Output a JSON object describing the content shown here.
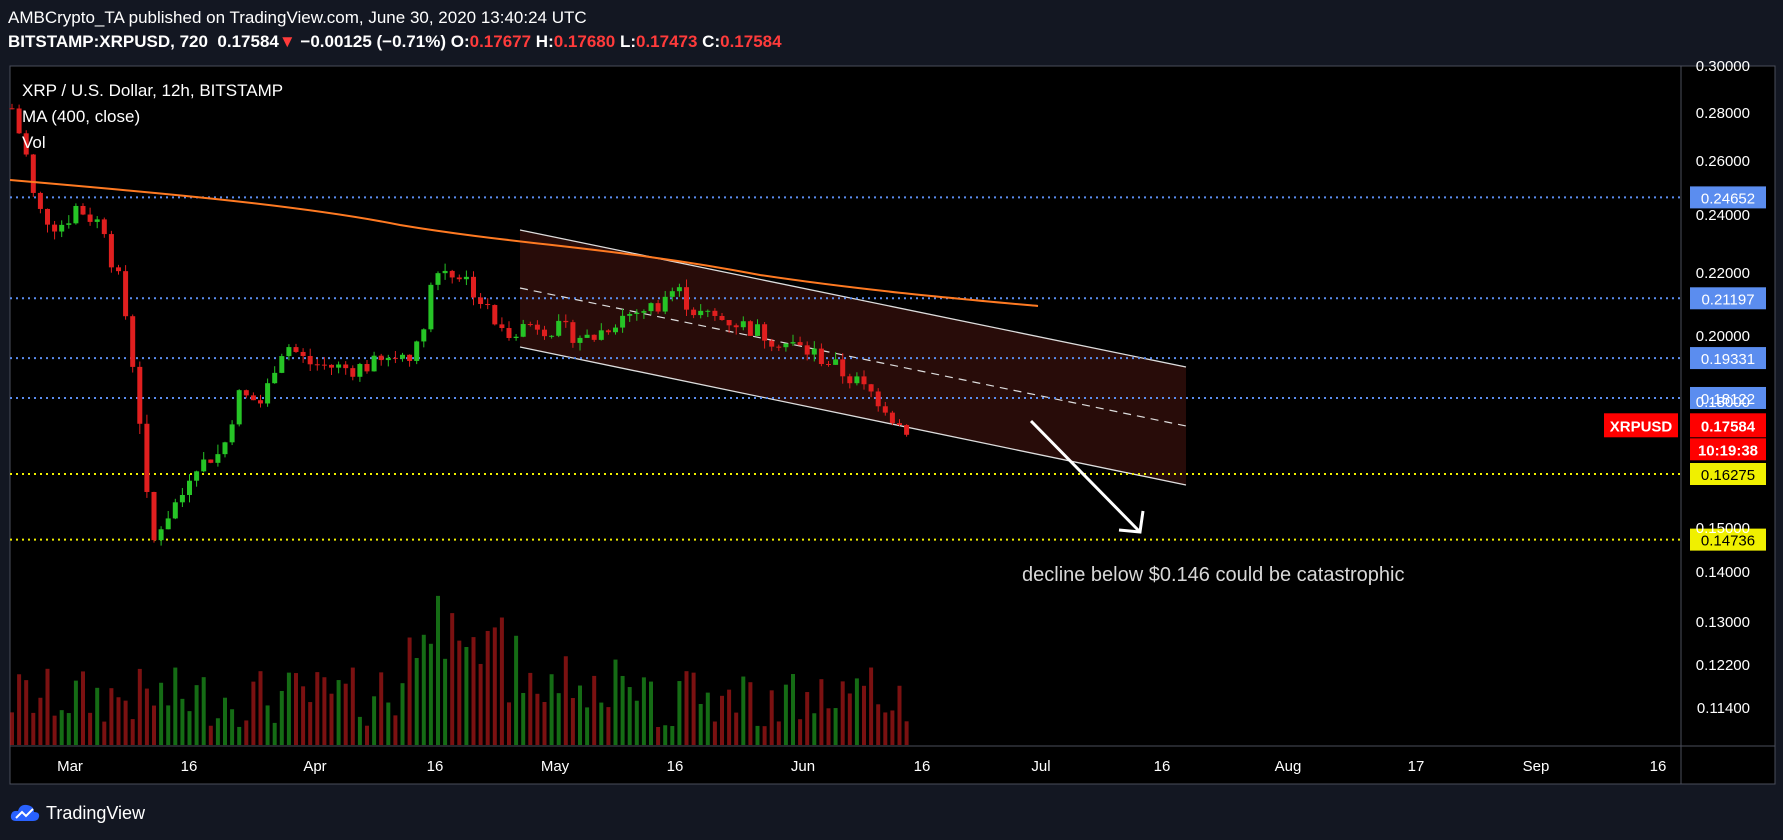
{
  "header": {
    "publisher": "AMBCrypto_TA",
    "published_text": "published on TradingView.com, June 30, 2020 13:40:24 UTC",
    "symbol": "BITSTAMP:XRPUSD, 720",
    "last": "0.17584",
    "change": "−0.00125 (−0.71%)",
    "o_label": "O:",
    "o": "0.17677",
    "h_label": "H:",
    "h": "0.17680",
    "l_label": "L:",
    "l": "0.17473",
    "c_label": "C:",
    "c": "0.17584"
  },
  "legend": {
    "title": "XRP / U.S. Dollar, 12h, BITSTAMP",
    "ma": "MA (400, close)",
    "vol": "Vol"
  },
  "branding": {
    "name": "TradingView",
    "icon": "tradingview-cloud-icon"
  },
  "colors": {
    "background": "#000000",
    "frame": "#131722",
    "up": "#26c426",
    "down": "#e01f1f",
    "ma": "#ff7a22",
    "blue_line": "#5b8def",
    "yellow_line": "#f0f000",
    "channel_fill": "#2a0d0a",
    "white": "#ffffff"
  },
  "chart_data": {
    "type": "candlestick",
    "title": "XRP / U.S. Dollar, 12h, BITSTAMP",
    "x_ticks": [
      "Mar",
      "16",
      "Apr",
      "16",
      "May",
      "16",
      "Jun",
      "16",
      "Jul",
      "16",
      "Aug",
      "17",
      "Sep",
      "16"
    ],
    "y_ticks": [
      "0.30000",
      "0.28000",
      "0.26000",
      "0.24000",
      "0.22000",
      "0.20000",
      "0.18000",
      "0.15000",
      "0.14000",
      "0.13000",
      "0.12200",
      "0.11400"
    ],
    "price_line": {
      "label": "XRPUSD",
      "value": "0.17584",
      "countdown": "10:19:38"
    },
    "levels": [
      {
        "value": 0.24652,
        "label": "0.24652",
        "style": "blue"
      },
      {
        "value": 0.21197,
        "label": "0.21197",
        "style": "blue"
      },
      {
        "value": 0.19331,
        "label": "0.19331",
        "style": "blue"
      },
      {
        "value": 0.18122,
        "label": "0.18122",
        "style": "blue"
      },
      {
        "value": 0.16275,
        "label": "0.16275",
        "style": "yellow"
      },
      {
        "value": 0.14736,
        "label": "0.14736",
        "style": "yellow"
      }
    ],
    "annotation": "decline below $0.146 could be catastrophic",
    "ma_label": "MA (400, close)"
  }
}
